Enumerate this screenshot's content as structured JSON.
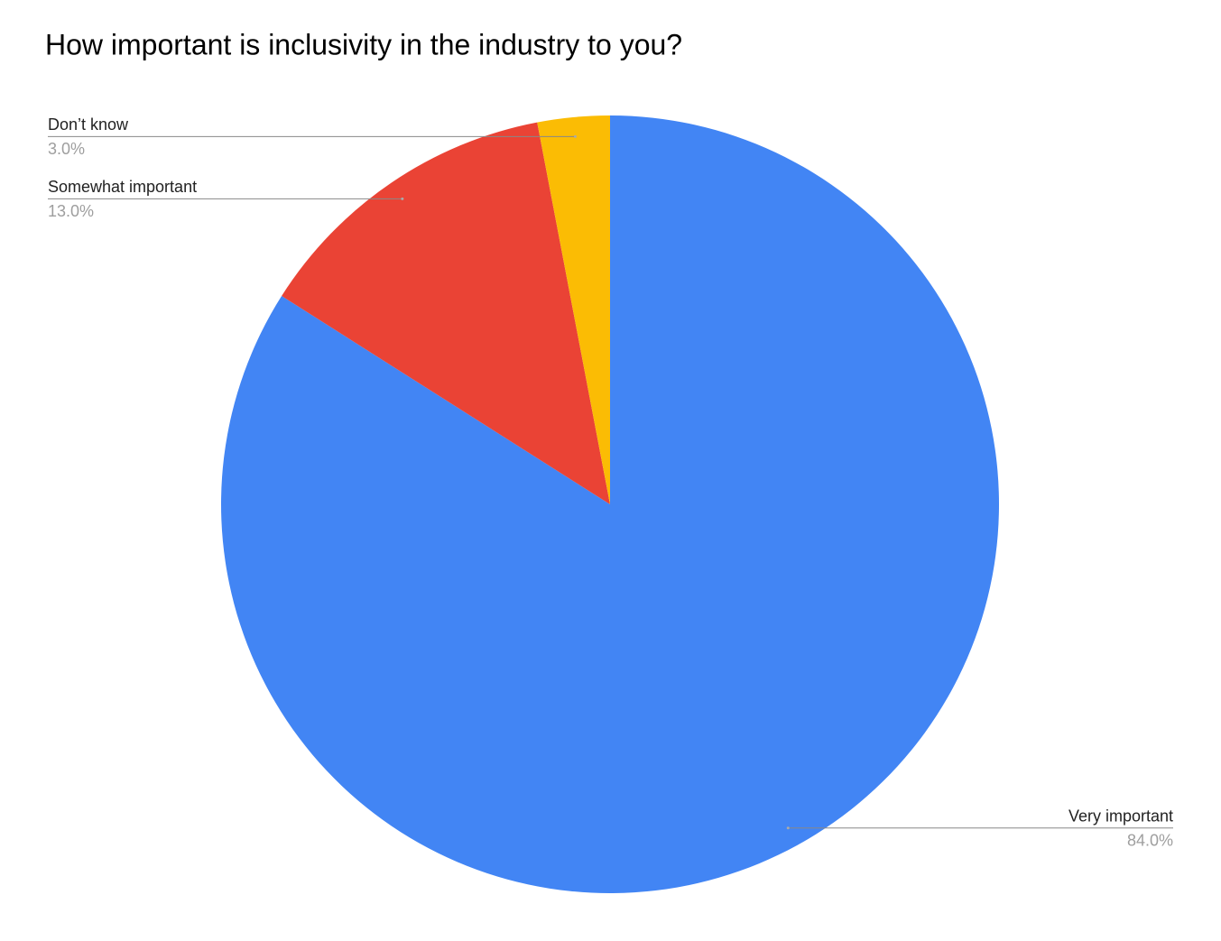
{
  "chart_data": {
    "type": "pie",
    "title": "How important is inclusivity in the industry to you?",
    "categories": [
      "Very important",
      "Somewhat important",
      "Don’t know"
    ],
    "values": [
      84,
      13,
      3
    ],
    "value_labels": [
      "84.0%",
      "13.0%",
      "3.0%"
    ],
    "colors": [
      "#4285f4",
      "#ea4335",
      "#fbbc04"
    ]
  }
}
